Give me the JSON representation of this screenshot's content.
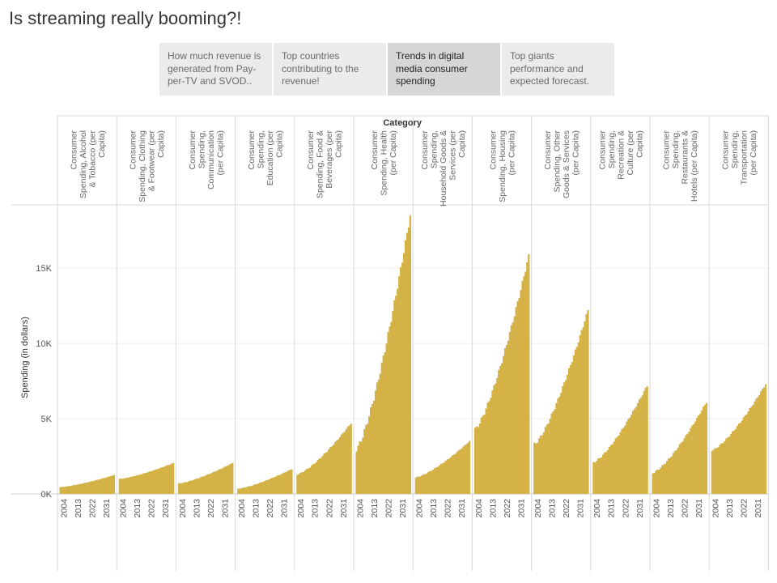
{
  "page": {
    "title": "Is streaming really booming?!"
  },
  "tabs": [
    {
      "label": "How much revenue is generated from Pay-per-TV and SVOD..",
      "active": false
    },
    {
      "label": "Top countries contributing to the revenue!",
      "active": false
    },
    {
      "label": "Trends in digital media consumer spending",
      "active": true
    },
    {
      "label": "Top giants performance and expected forecast.",
      "active": false
    }
  ],
  "chart_data": {
    "type": "bar",
    "facet_header": "Category",
    "ylabel": "Spending (in dollars)",
    "ylim": [
      0,
      19200
    ],
    "y_ticks": [
      0,
      5000,
      10000,
      15000
    ],
    "y_tick_labels": [
      "0K",
      "5K",
      "10K",
      "15K"
    ],
    "x_range": [
      2001,
      2037
    ],
    "x_ticks": [
      "2004",
      "2013",
      "2022",
      "2031"
    ],
    "bar_color": "#d4b246",
    "grid": true,
    "panels": [
      {
        "name": "Consumer Spending, Alcohol & Tobacco (per Capita)",
        "header_lines": [
          "Consumer",
          "Spending, Alcohol",
          "& Tobacco (per",
          "Capita)"
        ],
        "start": 450,
        "end": 1250
      },
      {
        "name": "Consumer Spending, Clothing & Footwear (per Capita)",
        "header_lines": [
          "Consumer",
          "Spending, Clothing",
          "& Footwear (per",
          "Capita)"
        ],
        "start": 1000,
        "end": 2050
      },
      {
        "name": "Consumer Spending, Communication (per Capita)",
        "header_lines": [
          "Consumer",
          "Spending,",
          "Communication",
          "(per Capita)"
        ],
        "start": 700,
        "end": 2050
      },
      {
        "name": "Consumer Spending, Education (per Capita)",
        "header_lines": [
          "Consumer",
          "Spending,",
          "Education (per",
          "Capita)"
        ],
        "start": 350,
        "end": 1650
      },
      {
        "name": "Consumer Spending, Food & Beverages (per Capita)",
        "header_lines": [
          "Consumer",
          "Spending, Food &",
          "Beverages (per",
          "Capita)"
        ],
        "start": 1300,
        "end": 4700
      },
      {
        "name": "Consumer Spending, Health (per Capita)",
        "header_lines": [
          "Consumer",
          "Spending, Health",
          "(per Capita)"
        ],
        "start": 3000,
        "end": 18500
      },
      {
        "name": "Consumer Spending, Household Goods & Services (per Capita)",
        "header_lines": [
          "Consumer",
          "Spending,",
          "Household Goods &",
          "Services (per",
          "Capita)"
        ],
        "start": 1100,
        "end": 3500
      },
      {
        "name": "Consumer Spending, Housing (per Capita)",
        "header_lines": [
          "Consumer",
          "Spending, Housing",
          "(per Capita)"
        ],
        "start": 4300,
        "end": 15800
      },
      {
        "name": "Consumer Spending, Other Goods & Services (per Capita)",
        "header_lines": [
          "Consumer",
          "Spending, Other",
          "Goods & Services",
          "(per Capita)"
        ],
        "start": 3300,
        "end": 12200
      },
      {
        "name": "Consumer Spending, Recreation & Culture (per Capita)",
        "header_lines": [
          "Consumer",
          "Spending,",
          "Recreation &",
          "Culture (per",
          "Capita)"
        ],
        "start": 2100,
        "end": 7200
      },
      {
        "name": "Consumer Spending, Restaurants & Hotels (per Capita)",
        "header_lines": [
          "Consumer",
          "Spending,",
          "Restaurants &",
          "Hotels (per Capita)"
        ],
        "start": 1400,
        "end": 6100
      },
      {
        "name": "Consumer Spending, Transportation (per Capita)",
        "header_lines": [
          "Consumer",
          "Spending,",
          "Transportation",
          "(per Capita)"
        ],
        "start": 2900,
        "end": 7300
      }
    ]
  }
}
